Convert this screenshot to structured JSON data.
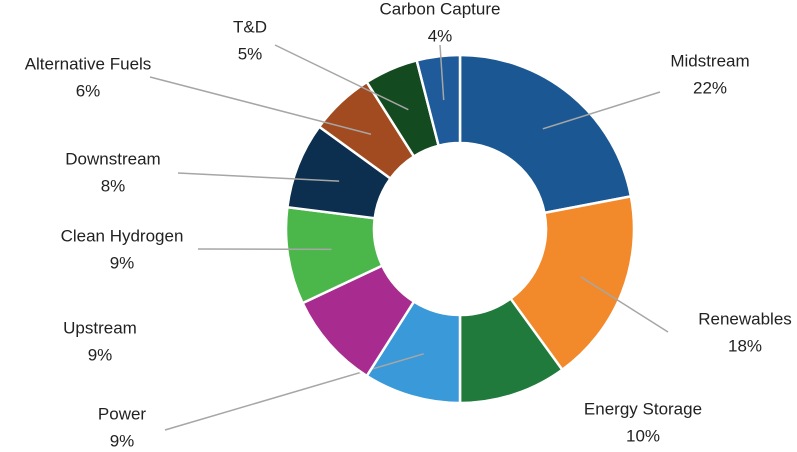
{
  "chart_data": {
    "type": "donut",
    "categories": [
      "Midstream",
      "Renewables",
      "Energy Storage",
      "Power",
      "Upstream",
      "Clean Hydrogen",
      "Downstream",
      "Alternative Fuels",
      "T&D",
      "Carbon Capture"
    ],
    "values": [
      22,
      18,
      10,
      9,
      9,
      9,
      8,
      6,
      5,
      4
    ],
    "value_labels": [
      "22%",
      "18%",
      "10%",
      "9%",
      "9%",
      "9%",
      "8%",
      "6%",
      "5%",
      "4%"
    ],
    "colors": [
      "#1b5893",
      "#f28a2b",
      "#1f7a3c",
      "#3a99d8",
      "#a82b8f",
      "#4bb74a",
      "#0c2f4f",
      "#a24a20",
      "#134a20",
      "#1f5a9a"
    ]
  }
}
